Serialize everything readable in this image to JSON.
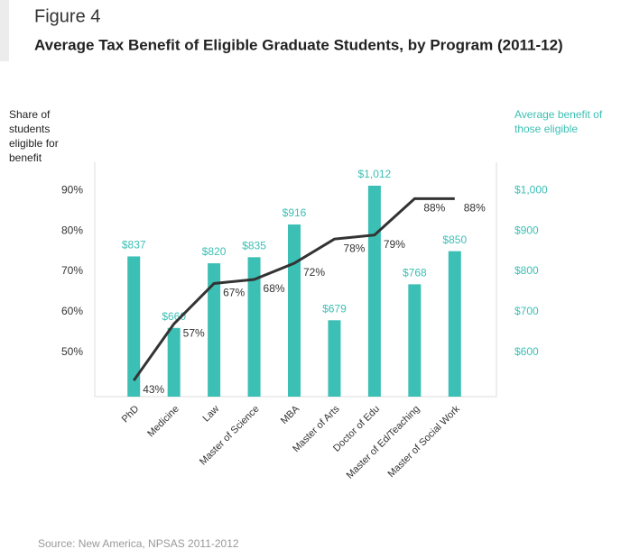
{
  "figure_label": "Figure 4",
  "chart_data": {
    "type": "bar-line",
    "title": "Average Tax Benefit of Eligible Graduate Students, by Program (2011-12)",
    "source": "Source: New America, NPSAS 2011-2012",
    "categories": [
      "PhD",
      "Medicine",
      "Law",
      "Master of Science",
      "MBA",
      "Master of Arts",
      "Doctor of Edu",
      "Master of Ed/Teaching",
      "Master of Social Work"
    ],
    "series": [
      {
        "name": "Share of students eligible for benefit",
        "type": "line",
        "color": "#333333",
        "values": [
          43,
          57,
          67,
          68,
          72,
          78,
          79,
          88,
          88
        ],
        "value_labels": [
          "43%",
          "57%",
          "67%",
          "68%",
          "72%",
          "78%",
          "79%",
          "88%",
          "88%"
        ]
      },
      {
        "name": "Average benefit of those eligible",
        "type": "bar",
        "axis": "y2",
        "color": "#3cbfb4",
        "values": [
          837,
          660,
          820,
          835,
          916,
          679,
          1012,
          768,
          850
        ],
        "value_labels": [
          "$837",
          "$660",
          "$820",
          "$835",
          "$916",
          "$679",
          "$1,012",
          "$768",
          "$850"
        ]
      }
    ],
    "ylim": [
      39,
      97
    ],
    "yticks": [
      {
        "value": 50,
        "label": "50%"
      },
      {
        "value": 60,
        "label": "60%"
      },
      {
        "value": 70,
        "label": "70%"
      },
      {
        "value": 80,
        "label": "80%"
      },
      {
        "value": 90,
        "label": "90%"
      }
    ],
    "y2lim": [
      490,
      1070
    ],
    "y2ticks": [
      {
        "value": 600,
        "label": "$600"
      },
      {
        "value": 700,
        "label": "$700"
      },
      {
        "value": 800,
        "label": "$800"
      },
      {
        "value": 900,
        "label": "$900"
      },
      {
        "value": 1000,
        "label": "$1,000"
      }
    ]
  }
}
